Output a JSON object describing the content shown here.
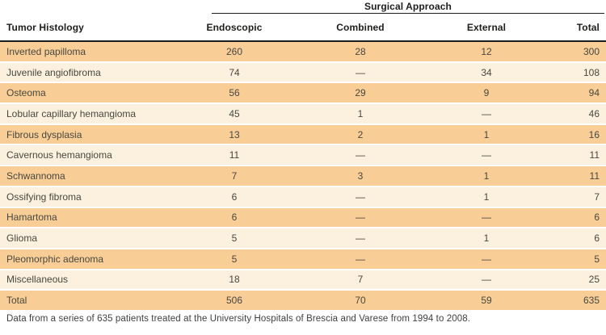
{
  "table": {
    "spanner": "Surgical Approach",
    "columns": {
      "histology": "Tumor Histology",
      "endoscopic": "Endoscopic",
      "combined": "Combined",
      "external": "External",
      "total": "Total"
    },
    "rows": [
      {
        "label": "Inverted papilloma",
        "endoscopic": "260",
        "combined": "28",
        "external": "12",
        "total": "300"
      },
      {
        "label": "Juvenile angiofibroma",
        "endoscopic": "74",
        "combined": "—",
        "external": "34",
        "total": "108"
      },
      {
        "label": "Osteoma",
        "endoscopic": "56",
        "combined": "29",
        "external": "9",
        "total": "94"
      },
      {
        "label": "Lobular capillary hemangioma",
        "endoscopic": "45",
        "combined": "1",
        "external": "—",
        "total": "46"
      },
      {
        "label": "Fibrous dysplasia",
        "endoscopic": "13",
        "combined": "2",
        "external": "1",
        "total": "16"
      },
      {
        "label": "Cavernous hemangioma",
        "endoscopic": "11",
        "combined": "—",
        "external": "—",
        "total": "11"
      },
      {
        "label": "Schwannoma",
        "endoscopic": "7",
        "combined": "3",
        "external": "1",
        "total": "11"
      },
      {
        "label": "Ossifying fibroma",
        "endoscopic": "6",
        "combined": "—",
        "external": "1",
        "total": "7"
      },
      {
        "label": "Hamartoma",
        "endoscopic": "6",
        "combined": "—",
        "external": "—",
        "total": "6"
      },
      {
        "label": "Glioma",
        "endoscopic": "5",
        "combined": "—",
        "external": "1",
        "total": "6"
      },
      {
        "label": "Pleomorphic adenoma",
        "endoscopic": "5",
        "combined": "—",
        "external": "—",
        "total": "5"
      },
      {
        "label": "Miscellaneous",
        "endoscopic": "18",
        "combined": "7",
        "external": "—",
        "total": "25"
      },
      {
        "label": "Total",
        "endoscopic": "506",
        "combined": "70",
        "external": "59",
        "total": "635"
      }
    ],
    "footnote": "Data from a series of 635 patients treated at the University Hospitals of Brescia and Varese from 1994 to 2008."
  },
  "colors": {
    "row_shaded": "#F9CE96",
    "row_light": "#FCF1DE",
    "rule": "#1D1D1B"
  }
}
